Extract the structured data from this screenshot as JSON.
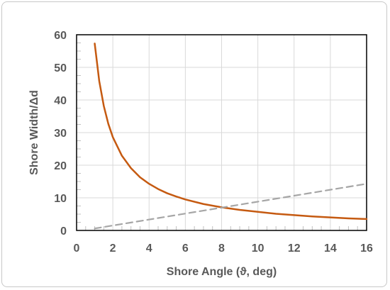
{
  "chart_data": {
    "type": "line",
    "title": "",
    "xlabel": "Shore Angle (ϑ, deg)",
    "ylabel": "Shore Width/Δd",
    "xlim": [
      0,
      16
    ],
    "ylim": [
      0,
      60
    ],
    "x_ticks": [
      "0",
      "2",
      "4",
      "6",
      "8",
      "10",
      "12",
      "14",
      "16"
    ],
    "y_ticks": [
      "0",
      "10",
      "20",
      "30",
      "40",
      "50",
      "60"
    ],
    "grid": true,
    "legend": "none",
    "series": [
      {
        "style": "solid",
        "color": "#c55a11",
        "x": [
          1,
          1.25,
          1.5,
          1.75,
          2,
          2.5,
          3,
          3.5,
          4,
          4.5,
          5,
          5.5,
          6,
          7,
          8,
          9,
          10,
          11,
          12,
          13,
          14,
          15,
          16
        ],
        "y": [
          57.3,
          45.8,
          38.2,
          32.7,
          28.6,
          22.9,
          19.1,
          16.3,
          14.3,
          12.7,
          11.4,
          10.4,
          9.5,
          8.1,
          7.1,
          6.3,
          5.7,
          5.1,
          4.7,
          4.3,
          4.0,
          3.7,
          3.5
        ]
      },
      {
        "style": "dashed",
        "color": "#a6a6a6",
        "x": [
          1,
          16
        ],
        "y": [
          0.6,
          14.3
        ]
      }
    ]
  }
}
